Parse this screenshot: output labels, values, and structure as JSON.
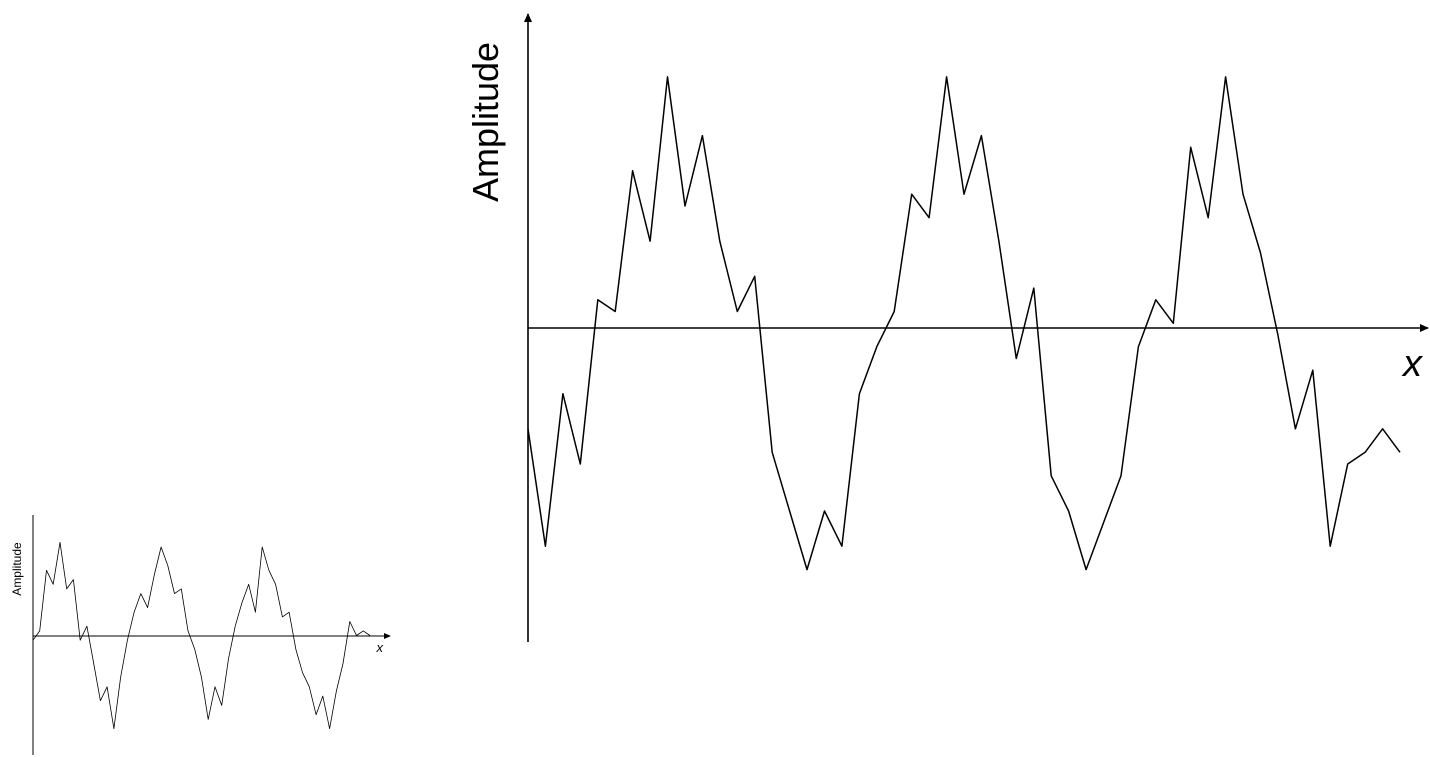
{
  "chart_data": [
    {
      "type": "line",
      "title": "",
      "xlabel": "x",
      "ylabel": "Amplitude",
      "grid": false,
      "legend": "none",
      "xlim": [
        0,
        10
      ],
      "ylim": [
        -1.35,
        1.25
      ],
      "line_color": "#000000",
      "axis_color": "#000000",
      "series": [
        {
          "x": [
            0.0,
            0.2,
            0.4,
            0.6,
            0.8,
            1.0,
            1.2,
            1.4,
            1.6,
            1.8,
            2.0,
            2.2,
            2.4,
            2.6,
            2.8,
            3.0,
            3.2,
            3.4,
            3.6,
            3.8,
            4.0,
            4.2,
            4.4,
            4.6,
            4.8,
            5.0,
            5.2,
            5.4,
            5.6,
            5.8,
            6.0,
            6.2,
            6.4,
            6.6,
            6.8,
            7.0,
            7.2,
            7.4,
            7.6,
            7.8,
            8.0,
            8.2,
            8.4,
            8.6,
            8.8,
            9.0,
            9.2,
            9.4,
            9.6,
            9.8,
            10.0
          ],
          "y": [
            -0.45,
            -0.95,
            -0.3,
            -0.6,
            0.1,
            0.05,
            0.65,
            0.35,
            1.05,
            0.5,
            0.8,
            0.35,
            0.05,
            0.2,
            -0.55,
            -0.8,
            -1.05,
            -0.8,
            -0.95,
            -0.3,
            -0.1,
            0.05,
            0.55,
            0.45,
            1.05,
            0.55,
            0.8,
            0.35,
            -0.15,
            0.15,
            -0.65,
            -0.8,
            -1.05,
            -0.85,
            -0.65,
            -0.1,
            0.1,
            0.0,
            0.75,
            0.45,
            1.05,
            0.55,
            0.3,
            -0.05,
            -0.45,
            -0.2,
            -0.95,
            -0.6,
            -0.55,
            -0.45,
            -0.55
          ]
        }
      ]
    },
    {
      "type": "line",
      "title": "",
      "xlabel": "x",
      "ylabel": "Amplitude",
      "grid": false,
      "legend": "none",
      "xlim": [
        0,
        10
      ],
      "ylim": [
        -1.25,
        1.1
      ],
      "line_color": "#000000",
      "axis_color": "#000000",
      "series": [
        {
          "x": [
            0.0,
            0.2,
            0.4,
            0.6,
            0.8,
            1.0,
            1.2,
            1.4,
            1.6,
            1.8,
            2.0,
            2.2,
            2.4,
            2.6,
            2.8,
            3.0,
            3.2,
            3.4,
            3.6,
            3.8,
            4.0,
            4.2,
            4.4,
            4.6,
            4.8,
            5.0,
            5.2,
            5.4,
            5.6,
            5.8,
            6.0,
            6.2,
            6.4,
            6.6,
            6.8,
            7.0,
            7.2,
            7.4,
            7.6,
            7.8,
            8.0,
            8.2,
            8.4,
            8.6,
            8.8,
            9.0,
            9.2,
            9.4,
            9.6,
            9.8,
            10.0
          ],
          "y": [
            -0.05,
            0.05,
            0.7,
            0.55,
            1.0,
            0.5,
            0.6,
            -0.05,
            0.1,
            -0.3,
            -0.7,
            -0.55,
            -1.0,
            -0.45,
            -0.05,
            0.25,
            0.45,
            0.3,
            0.65,
            0.95,
            0.75,
            0.45,
            0.5,
            0.05,
            -0.15,
            -0.45,
            -0.9,
            -0.55,
            -0.75,
            -0.25,
            0.1,
            0.35,
            0.55,
            0.25,
            0.95,
            0.7,
            0.55,
            0.2,
            0.25,
            -0.15,
            -0.4,
            -0.55,
            -0.85,
            -0.65,
            -1.0,
            -0.6,
            -0.3,
            0.15,
            0.0,
            0.05,
            0.0
          ]
        }
      ]
    }
  ]
}
